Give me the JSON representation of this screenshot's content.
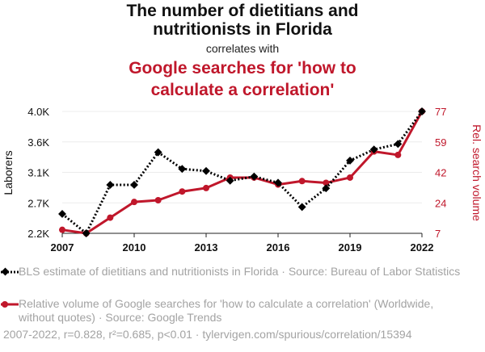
{
  "title": {
    "line1": "The number of dietitians and",
    "line2": "nutritionists in Florida",
    "connector": "correlates with",
    "line3": "Google searches for 'how to",
    "line4": "calculate a correlation'"
  },
  "colors": {
    "series1": "#000000",
    "series2": "#c0172b",
    "grid": "#ececec",
    "muted": "#a3a3a3"
  },
  "chart_data": {
    "type": "line",
    "x": [
      2007,
      2008,
      2009,
      2010,
      2011,
      2012,
      2013,
      2014,
      2015,
      2016,
      2017,
      2018,
      2019,
      2020,
      2021,
      2022
    ],
    "xticks": [
      "2007",
      "2010",
      "2013",
      "2016",
      "2019",
      "2022"
    ],
    "xlim": [
      2007,
      2022
    ],
    "y_left": {
      "label": "Laborers",
      "ticks": [
        "2.2K",
        "2.7K",
        "3.1K",
        "3.6K",
        "4.0K"
      ],
      "tick_values": [
        2240,
        2680,
        3120,
        3560,
        4000
      ],
      "lim": [
        2240,
        4000
      ]
    },
    "y_right": {
      "label": "Rel. search volume",
      "ticks": [
        "7",
        "24",
        "42",
        "59",
        "77"
      ],
      "tick_values": [
        7,
        24.5,
        42,
        59.5,
        77
      ],
      "lim": [
        7,
        77
      ]
    },
    "series": [
      {
        "name": "BLS estimate of dietitians and nutritionists in Florida · Source: Bureau of Labor Statistics",
        "axis": "left",
        "style": "dotted",
        "marker": "diamond",
        "values": [
          2520,
          2240,
          2940,
          2940,
          3410,
          3170,
          3140,
          3000,
          3060,
          2970,
          2620,
          2890,
          3290,
          3450,
          3530,
          4000
        ]
      },
      {
        "name": "Relative volume of Google searches for 'how to calculate a correlation' (Worldwide, without quotes) · Source: Google Trends",
        "axis": "right",
        "style": "solid",
        "marker": "circle",
        "values": [
          9,
          7,
          16,
          25,
          26,
          31,
          33,
          39,
          39,
          35,
          37,
          36,
          39,
          54,
          52,
          77
        ]
      }
    ]
  },
  "legend": {
    "item1": "BLS estimate of dietitians and nutritionists in Florida · Source: Bureau of Labor Statistics",
    "item2": "Relative volume of Google searches for 'how to calculate a correlation' (Worldwide, without quotes) · Source: Google Trends"
  },
  "footer": "2007-2022, r=0.828, r²=0.685, p<0.01 · tylervigen.com/spurious/correlation/15394"
}
